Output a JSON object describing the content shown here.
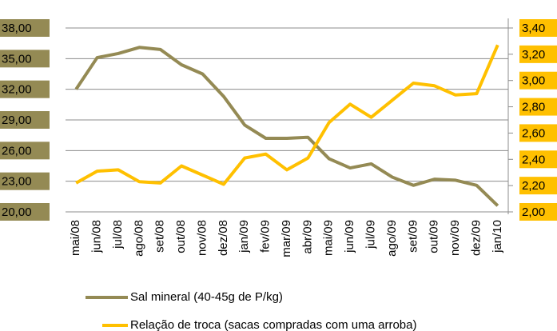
{
  "chart_data": {
    "type": "line",
    "categories": [
      "mai/08",
      "jun/08",
      "jul/08",
      "ago/08",
      "set/08",
      "out/08",
      "nov/08",
      "dez/08",
      "jan/09",
      "fev/09",
      "mar/09",
      "abr/09",
      "mai/09",
      "jun/09",
      "jul/09",
      "ago/09",
      "set/09",
      "out/09",
      "nov/09",
      "dez/09",
      "jan/10"
    ],
    "series": [
      {
        "name": "Sal mineral (40-45g de P/kg)",
        "color": "#948a54",
        "values": [
          32.0,
          35.1,
          35.5,
          36.1,
          35.9,
          34.4,
          33.5,
          31.3,
          28.5,
          27.2,
          27.2,
          27.3,
          25.2,
          24.3,
          24.7,
          23.4,
          22.6,
          23.2,
          23.1,
          22.6,
          20.6
        ]
      },
      {
        "name": "Relação de troca (sacas compradas com uma arroba)",
        "color": "#ffc000",
        "axis": "y2",
        "values": [
          2.22,
          2.31,
          2.32,
          2.23,
          2.22,
          2.35,
          2.28,
          2.21,
          2.41,
          2.44,
          2.32,
          2.41,
          2.68,
          2.82,
          2.72,
          2.85,
          2.98,
          2.96,
          2.89,
          2.9,
          3.27
        ]
      }
    ],
    "ylim": [
      20,
      38
    ],
    "yticks": [
      {
        "value": 20,
        "label": "20,00"
      },
      {
        "value": 23,
        "label": "23,00"
      },
      {
        "value": 26,
        "label": "26,00"
      },
      {
        "value": 29,
        "label": "29,00"
      },
      {
        "value": 32,
        "label": "32,00"
      },
      {
        "value": 35,
        "label": "35,00"
      },
      {
        "value": 38,
        "label": "38,00"
      }
    ],
    "y2lim": [
      2.0,
      3.4
    ],
    "y2ticks": [
      {
        "value": 2.0,
        "label": "2,00"
      },
      {
        "value": 2.2,
        "label": "2,20"
      },
      {
        "value": 2.4,
        "label": "2,40"
      },
      {
        "value": 2.6,
        "label": "2,60"
      },
      {
        "value": 2.8,
        "label": "2,80"
      },
      {
        "value": 3.0,
        "label": "3,00"
      },
      {
        "value": 3.2,
        "label": "3,20"
      },
      {
        "value": 3.4,
        "label": "3,40"
      }
    ],
    "grid": true
  }
}
